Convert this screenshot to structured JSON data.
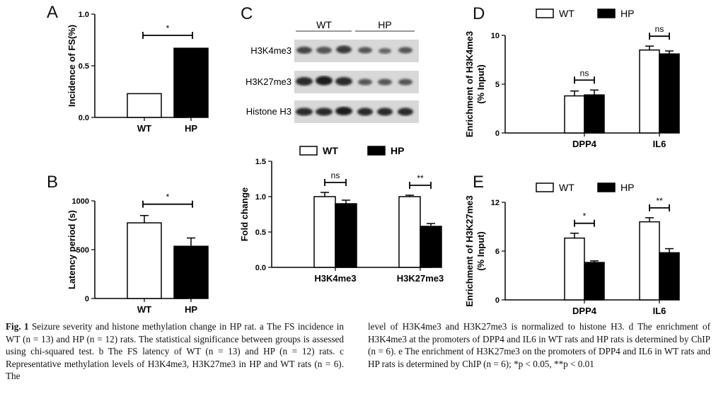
{
  "panels": {
    "A": "A",
    "B": "B",
    "C": "C",
    "D": "D",
    "E": "E"
  },
  "blot": {
    "groups": [
      "WT",
      "HP"
    ],
    "rows": [
      "H3K4me3",
      "H3K27me3",
      "Histone H3"
    ]
  },
  "chart_data": [
    {
      "id": "A",
      "type": "bar",
      "title": "",
      "xlabel": "",
      "ylabel": "Incidence of FS(%)",
      "categories": [
        "WT",
        "HP"
      ],
      "values": [
        0.23,
        0.67
      ],
      "ylim": [
        0,
        1.0
      ],
      "yticks": [
        "0.0",
        "0.5",
        "1.0"
      ],
      "significance": [
        {
          "label": "*"
        }
      ],
      "colors": [
        "#ffffff",
        "#000000"
      ]
    },
    {
      "id": "B",
      "type": "bar",
      "title": "",
      "xlabel": "",
      "ylabel": "Latency period (s)",
      "categories": [
        "WT",
        "HP"
      ],
      "values": [
        775,
        535
      ],
      "errors": [
        75,
        85
      ],
      "ylim": [
        0,
        1000
      ],
      "yticks": [
        "0",
        "500",
        "1000"
      ],
      "significance": [
        {
          "label": "*"
        }
      ],
      "colors": [
        "#ffffff",
        "#000000"
      ]
    },
    {
      "id": "C",
      "type": "bar",
      "title": "",
      "xlabel": "",
      "ylabel": "Fold change",
      "categories": [
        "H3K4me3",
        "H3K27me3"
      ],
      "legend": [
        "WT",
        "HP"
      ],
      "series": [
        {
          "name": "WT",
          "values": [
            1.0,
            1.0
          ],
          "errors": [
            0.06,
            0.02
          ]
        },
        {
          "name": "HP",
          "values": [
            0.9,
            0.58
          ],
          "errors": [
            0.05,
            0.04
          ]
        }
      ],
      "ylim": [
        0,
        1.5
      ],
      "yticks": [
        "0.0",
        "0.5",
        "1.0",
        "1.5"
      ],
      "significance": [
        {
          "label": "ns"
        },
        {
          "label": "**"
        }
      ],
      "colors": [
        "#ffffff",
        "#000000"
      ]
    },
    {
      "id": "D",
      "type": "bar",
      "title": "",
      "xlabel": "",
      "ylabel": "Enrichment of H3K4me3",
      "ylabel2": "(% Input)",
      "categories": [
        "DPP4",
        "IL6"
      ],
      "legend": [
        "WT",
        "HP"
      ],
      "series": [
        {
          "name": "WT",
          "values": [
            3.8,
            8.5
          ],
          "errors": [
            0.5,
            0.4
          ]
        },
        {
          "name": "HP",
          "values": [
            3.9,
            8.1
          ],
          "errors": [
            0.5,
            0.3
          ]
        }
      ],
      "ylim": [
        0,
        10
      ],
      "yticks": [
        "0",
        "5",
        "10"
      ],
      "significance": [
        {
          "label": "ns"
        },
        {
          "label": "ns"
        }
      ],
      "colors": [
        "#ffffff",
        "#000000"
      ]
    },
    {
      "id": "E",
      "type": "bar",
      "title": "",
      "xlabel": "",
      "ylabel": "Enrichment of H3K27me3",
      "ylabel2": "(% Input)",
      "categories": [
        "DPP4",
        "IL6"
      ],
      "legend": [
        "WT",
        "HP"
      ],
      "series": [
        {
          "name": "WT",
          "values": [
            7.6,
            9.6
          ],
          "errors": [
            0.6,
            0.5
          ]
        },
        {
          "name": "HP",
          "values": [
            4.6,
            5.8
          ],
          "errors": [
            0.2,
            0.5
          ]
        }
      ],
      "ylim": [
        0,
        12
      ],
      "yticks": [
        "0",
        "6",
        "12"
      ],
      "significance": [
        {
          "label": "*"
        },
        {
          "label": "**"
        }
      ],
      "colors": [
        "#ffffff",
        "#000000"
      ]
    }
  ],
  "caption_left": {
    "label": "Fig. 1",
    "text": "Seizure severity and histone methylation change in HP rat. a The FS incidence in WT (n = 13) and HP (n = 12) rats. The statistical significance between groups is assessed using chi-squared test. b The FS latency of WT (n = 13) and HP (n = 12) rats. c Representative methylation levels of H3K4me3, H3K27me3 in HP and WT rats (n = 6). The"
  },
  "caption_right": {
    "text": "level of H3K4me3 and H3K27me3 is normalized to histone H3. d The enrichment of H3K4me3 at the promoters of DPP4 and IL6 in WT rats and HP rats is determined by ChIP (n = 6). e The enrichment of H3K27me3 on the promoters of DPP4 and IL6 in WT rats and HP rats is determined by ChIP (n = 6); *p < 0.05, **p < 0.01"
  }
}
